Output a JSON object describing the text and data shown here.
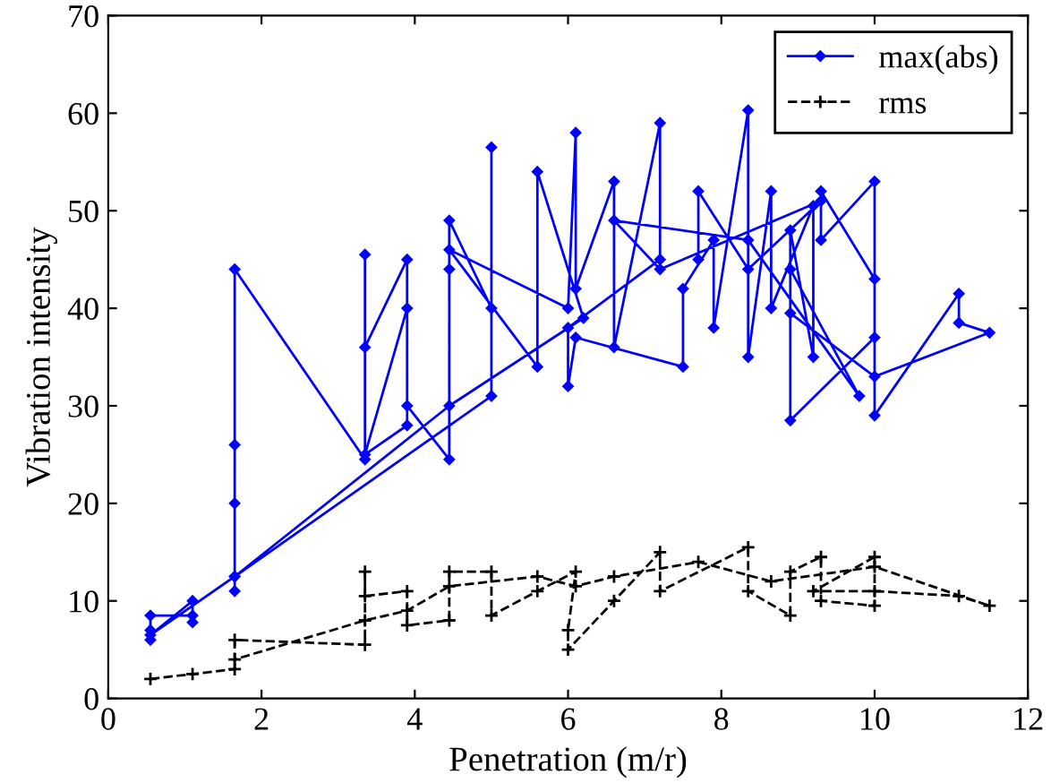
{
  "chart_data": {
    "type": "line",
    "xlabel": "Penetration (m/r)",
    "ylabel": "Vibration intensity",
    "xlim": [
      0,
      12
    ],
    "ylim": [
      0,
      70
    ],
    "xticks": [
      0,
      2,
      4,
      6,
      8,
      10,
      12
    ],
    "yticks": [
      0,
      10,
      20,
      30,
      40,
      50,
      60,
      70
    ],
    "grid": false,
    "legend": "top right",
    "series": [
      {
        "name": "max(abs)",
        "color": "#0000ff",
        "marker": "diamond",
        "line_style": "solid",
        "x": [
          0.55,
          0.55,
          0.55,
          1.1,
          1.1,
          1.1,
          0.55,
          1.65,
          1.65,
          1.65,
          1.65,
          1.65,
          3.35,
          3.35,
          3.35,
          3.9,
          3.9,
          3.35,
          3.9,
          3.9,
          4.45,
          4.45,
          4.45,
          5.0,
          5.0,
          5.0,
          1.65,
          4.45,
          6.2,
          5.6,
          5.6,
          4.45,
          6.0,
          6.1,
          6.1,
          6.6,
          6.6,
          7.2,
          7.2,
          6.0,
          6.0,
          6.1,
          7.5,
          7.5,
          7.9,
          7.9,
          8.35,
          8.35,
          8.65,
          8.65,
          9.2,
          9.2,
          8.9,
          8.9,
          10.0,
          10.0,
          9.3,
          9.3,
          10.0,
          10.0,
          11.1,
          11.1,
          11.5,
          10.0,
          8.9,
          8.9,
          9.8,
          8.35,
          6.6,
          7.2,
          9.3,
          8.35,
          7.7,
          7.7
        ],
        "values": [
          6,
          7,
          8.5,
          8.5,
          7.8,
          10,
          6.5,
          12.5,
          11,
          20,
          26,
          44,
          24.5,
          45.5,
          36,
          45,
          28,
          25,
          40,
          30,
          24.5,
          44,
          49,
          40,
          56.5,
          31,
          12.5,
          30,
          39,
          54,
          34,
          46,
          40,
          58,
          42,
          53,
          36,
          59,
          45,
          38,
          32,
          37,
          34,
          42,
          47,
          38,
          60.3,
          35,
          52,
          40,
          50.5,
          35,
          48,
          28.5,
          37,
          53,
          47,
          52,
          43,
          29,
          41.5,
          38.5,
          37.5,
          33,
          39.5,
          44,
          31,
          47,
          49,
          44,
          51,
          44,
          52,
          45
        ]
      },
      {
        "name": "rms",
        "color": "#000000",
        "marker": "cross",
        "line_style": "dashed",
        "x": [
          0.55,
          1.1,
          1.65,
          1.65,
          3.35,
          3.35,
          3.35,
          3.9,
          3.9,
          4.45,
          4.45,
          5.0,
          5.0,
          5.6,
          6.1,
          6.0,
          6.0,
          6.6,
          7.2,
          7.2,
          8.35,
          8.35,
          8.9,
          8.9,
          9.3,
          9.3,
          10.0,
          10.0,
          9.2,
          10.0,
          11.1,
          11.5,
          10.0,
          8.65,
          7.7,
          6.6,
          6.1,
          5.6,
          4.45,
          3.9,
          3.35,
          1.65
        ],
        "values": [
          2,
          2.5,
          3,
          6,
          5.5,
          13,
          10.5,
          11,
          7.5,
          8,
          13,
          13,
          8.5,
          11,
          13,
          7,
          5,
          10,
          15,
          11,
          15.5,
          11,
          8.5,
          13,
          14.5,
          10,
          9.5,
          14.5,
          11,
          11,
          10.5,
          9.5,
          13.5,
          12,
          14,
          12.5,
          11.5,
          12.5,
          11.5,
          9,
          8,
          4
        ]
      }
    ]
  }
}
